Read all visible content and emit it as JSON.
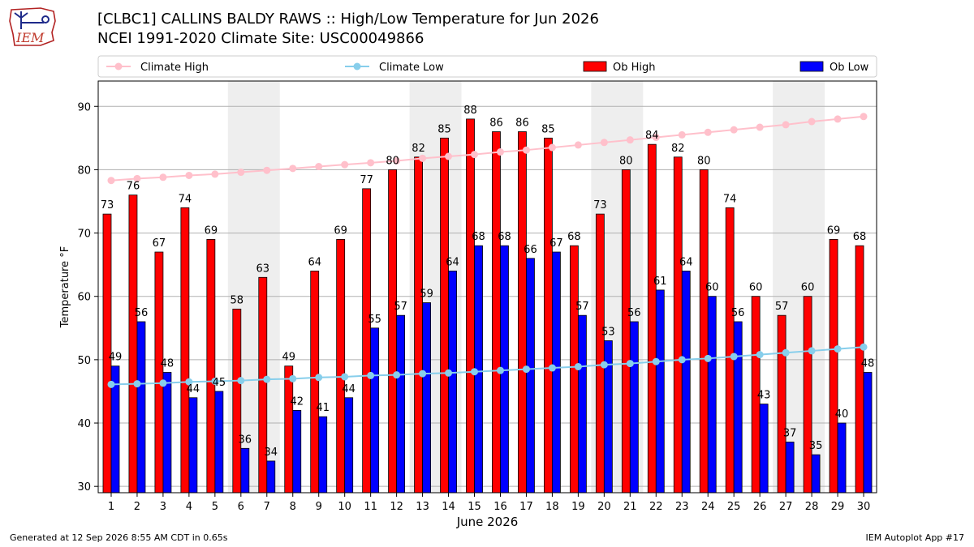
{
  "header": {
    "title": "[CLBC1] CALLINS BALDY RAWS :: High/Low Temperature for Jun 2026",
    "subtitle": "NCEI 1991-2020 Climate Site: USC00049866",
    "logo_text": "IEM"
  },
  "footer": {
    "generated": "Generated at 12 Sep 2026 8:55 AM CDT in 0.65s",
    "app": "IEM Autoplot App #17"
  },
  "colors": {
    "ob_high": "#ff0000",
    "ob_low": "#0000ff",
    "climate_high": "#ffc0cb",
    "climate_low": "#87ceeb",
    "weekend_band": "#eeeeee"
  },
  "chart_data": {
    "type": "bar",
    "xlabel": "June 2026",
    "ylabel": "Temperature °F",
    "ylim": [
      29,
      94
    ],
    "yticks": [
      30,
      40,
      50,
      60,
      70,
      80,
      90
    ],
    "grid": true,
    "legend_position": "top",
    "categories": [
      "1",
      "2",
      "3",
      "4",
      "5",
      "6",
      "7",
      "8",
      "9",
      "10",
      "11",
      "12",
      "13",
      "14",
      "15",
      "16",
      "17",
      "18",
      "19",
      "20",
      "21",
      "22",
      "23",
      "24",
      "25",
      "26",
      "27",
      "28",
      "29",
      "30"
    ],
    "weekend_bands": [
      [
        6,
        7
      ],
      [
        13,
        14
      ],
      [
        20,
        21
      ],
      [
        27,
        28
      ]
    ],
    "series": [
      {
        "name": "Ob High",
        "kind": "bar",
        "values": [
          73,
          76,
          67,
          74,
          69,
          58,
          63,
          49,
          64,
          69,
          77,
          80,
          82,
          85,
          88,
          86,
          86,
          85,
          68,
          73,
          80,
          84,
          82,
          80,
          74,
          60,
          57,
          60,
          69,
          68
        ]
      },
      {
        "name": "Ob Low",
        "kind": "bar",
        "values": [
          49,
          56,
          48,
          44,
          45,
          36,
          34,
          42,
          41,
          44,
          55,
          57,
          59,
          64,
          68,
          68,
          66,
          67,
          57,
          53,
          56,
          61,
          64,
          60,
          56,
          43,
          37,
          35,
          40,
          48
        ]
      },
      {
        "name": "Climate High",
        "kind": "line",
        "values": [
          78.3,
          78.6,
          78.8,
          79.1,
          79.3,
          79.6,
          79.9,
          80.2,
          80.5,
          80.8,
          81.1,
          81.4,
          81.8,
          82.1,
          82.4,
          82.8,
          83.1,
          83.5,
          83.9,
          84.3,
          84.7,
          85.1,
          85.5,
          85.9,
          86.3,
          86.7,
          87.1,
          87.6,
          88.0,
          88.4
        ]
      },
      {
        "name": "Climate Low",
        "kind": "line",
        "values": [
          46.1,
          46.2,
          46.3,
          46.5,
          46.6,
          46.7,
          46.9,
          47.0,
          47.2,
          47.3,
          47.5,
          47.6,
          47.8,
          47.9,
          48.1,
          48.3,
          48.5,
          48.7,
          48.9,
          49.2,
          49.4,
          49.7,
          50.0,
          50.2,
          50.5,
          50.8,
          51.1,
          51.4,
          51.7,
          52.0
        ]
      }
    ]
  }
}
